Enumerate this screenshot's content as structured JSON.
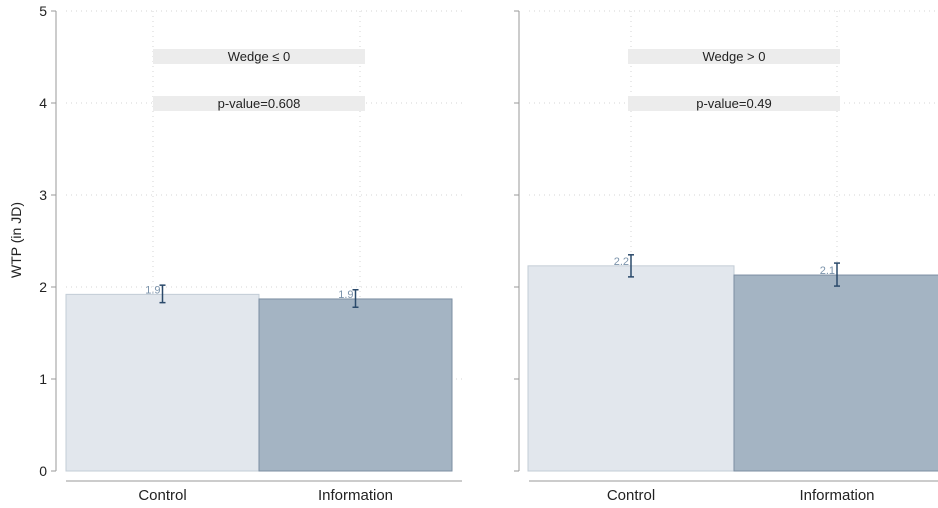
{
  "chart_data": {
    "type": "bar",
    "ylabel": "WTP (in JD)",
    "ylim": [
      0,
      5
    ],
    "yticks": [
      0,
      1,
      2,
      3,
      4,
      5
    ],
    "grid": true,
    "categories": [
      "Control",
      "Information"
    ],
    "colors": {
      "Control": "#e2e7ed",
      "Information": "#a4b4c3",
      "Control_edge": "#c3ccd6",
      "Information_edge": "#7b8ea2",
      "error_bar": "#2b4a6b",
      "label": "#7b93ab",
      "panel_box": "#ececec",
      "axis": "#9a9a9a",
      "grid": "#d4d4d4"
    },
    "panels": [
      {
        "title": "Wedge ≤ 0",
        "pvalue_text": "p-value=0.608",
        "values": [
          1.92,
          1.87
        ],
        "labels": [
          "1.9",
          "1.9"
        ],
        "ci_low": [
          1.83,
          1.78
        ],
        "ci_high": [
          2.02,
          1.97
        ]
      },
      {
        "title": "Wedge > 0",
        "pvalue_text": "p-value=0.49",
        "values": [
          2.23,
          2.13
        ],
        "labels": [
          "2.2",
          "2.1"
        ],
        "ci_low": [
          2.11,
          2.01
        ],
        "ci_high": [
          2.35,
          2.26
        ]
      }
    ]
  }
}
